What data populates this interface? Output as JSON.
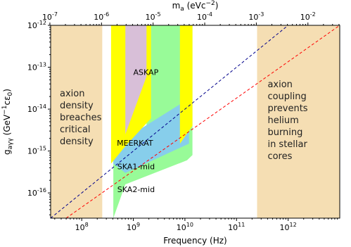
{
  "chart_data": {
    "type": "area",
    "xlabel": "Frequency (Hz)",
    "top_xlabel": "m_a (eVc^-2)",
    "ylabel": "g_aγγ (GeV^-1 c ε_0)",
    "x_scale": "log",
    "y_scale": "log",
    "xlim": [
      25000000.0,
      10000000000000.0
    ],
    "ylim": [
      2.5e-17,
      1e-12
    ],
    "x_ticks": [
      {
        "value": 100000000.0,
        "label": "10^8"
      },
      {
        "value": 1000000000.0,
        "label": "10^9"
      },
      {
        "value": 10000000000.0,
        "label": "10^10"
      },
      {
        "value": 100000000000.0,
        "label": "10^11"
      },
      {
        "value": 1000000000000.0,
        "label": "10^12"
      }
    ],
    "top_x_ticks": [
      {
        "value": 1e-07,
        "label": "10^-7"
      },
      {
        "value": 1e-06,
        "label": "10^-6"
      },
      {
        "value": 1e-05,
        "label": "10^-5"
      },
      {
        "value": 0.0001,
        "label": "10^-4"
      },
      {
        "value": 0.001,
        "label": "10^-3"
      },
      {
        "value": 0.01,
        "label": "10^-2"
      }
    ],
    "y_ticks": [
      {
        "value": 1e-16,
        "label": "10^-16"
      },
      {
        "value": 1e-15,
        "label": "10^-15"
      },
      {
        "value": 1e-14,
        "label": "10^-14"
      },
      {
        "value": 1e-13,
        "label": "10^-13"
      },
      {
        "value": 1e-12,
        "label": "10^-12"
      }
    ],
    "excluded_regions": [
      {
        "label_lines": [
          "axion",
          "density",
          "breaches",
          "critical",
          "density"
        ],
        "x_range": [
          25000000.0,
          250000000.0
        ],
        "color": "#f5deb3"
      },
      {
        "label_lines": [
          "axion",
          "coupling",
          "prevents",
          "helium",
          "burning",
          "in stellar",
          "cores"
        ],
        "x_range": [
          250000000000.0,
          10000000000000.0
        ],
        "color": "#f5deb3"
      }
    ],
    "series": [
      {
        "name": "SKA2-mid",
        "color": "#98fb98",
        "polygon": [
          [
            410000000.0,
            2.5e-17
          ],
          [
            410000000.0,
            1e-12
          ],
          [
            700000000.0,
            1e-12
          ],
          [
            700000000.0,
            1.8e-15
          ],
          [
            1800000000.0,
            1.8e-15
          ],
          [
            1800000000.0,
            1e-12
          ],
          [
            14000000000.0,
            1e-12
          ],
          [
            14000000000.0,
            8e-16
          ],
          [
            11000000000.0,
            6e-16
          ],
          [
            700000000.0,
            1.6e-16
          ],
          [
            410000000.0,
            2.5e-17
          ]
        ]
      },
      {
        "name": "SKA1-mid",
        "color": "#87ceeb",
        "polygon": [
          [
            410000000.0,
            5e-16
          ],
          [
            410000000.0,
            1e-12
          ],
          [
            700000000.0,
            1e-12
          ],
          [
            700000000.0,
            2e-15
          ],
          [
            2300000000.0,
            5e-15
          ],
          [
            8000000000.0,
            1.3e-14
          ],
          [
            12000000000.0,
            1.5e-14
          ],
          [
            12000000000.0,
            1.5e-15
          ],
          [
            700000000.0,
            3e-16
          ],
          [
            410000000.0,
            5e-16
          ]
        ]
      },
      {
        "name": "MEERKAT",
        "color": "#ffff00",
        "polygon": [
          [
            370000000.0,
            1e-12
          ],
          [
            2200000000.0,
            1e-12
          ],
          [
            2200000000.0,
            6e-15
          ],
          [
            700000000.0,
            1.3e-15
          ],
          [
            370000000.0,
            5e-16
          ],
          [
            370000000.0,
            1e-12
          ]
        ]
      },
      {
        "name": "MEERKAT",
        "color": "#ffff00",
        "polygon": [
          [
            8000000000.0,
            1e-12
          ],
          [
            14000000000.0,
            1e-12
          ],
          [
            14000000000.0,
            4e-15
          ],
          [
            8000000000.0,
            1.5e-15
          ],
          [
            8000000000.0,
            1e-12
          ]
        ]
      },
      {
        "name": "ASKAP",
        "color": "#d8bfd8",
        "polygon": [
          [
            700000000.0,
            1e-12
          ],
          [
            1800000000.0,
            1e-12
          ],
          [
            1800000000.0,
            6e-14
          ],
          [
            700000000.0,
            2.5e-15
          ],
          [
            700000000.0,
            1e-12
          ]
        ]
      }
    ],
    "lines": [
      {
        "color": "#00008b",
        "style": "dashed",
        "points": [
          [
            25000000.0,
            2.5e-17
          ],
          [
            1000000000000.0,
            1e-12
          ]
        ]
      },
      {
        "color": "#ff0000",
        "style": "dashed",
        "points": [
          [
            50000000.0,
            2.5e-17
          ],
          [
            10000000000000.0,
            1e-12
          ]
        ]
      }
    ],
    "region_labels": [
      {
        "text": "ASKAP",
        "x": 1000000000.0,
        "y": 6.5e-14
      },
      {
        "text": "MEERKAT",
        "x": 480000000.0,
        "y": 1.35e-15
      },
      {
        "text": "SKA1-mid",
        "x": 490000000.0,
        "y": 3.7e-16
      },
      {
        "text": "SKA2-mid",
        "x": 490000000.0,
        "y": 1.05e-16
      }
    ],
    "grid": false
  }
}
